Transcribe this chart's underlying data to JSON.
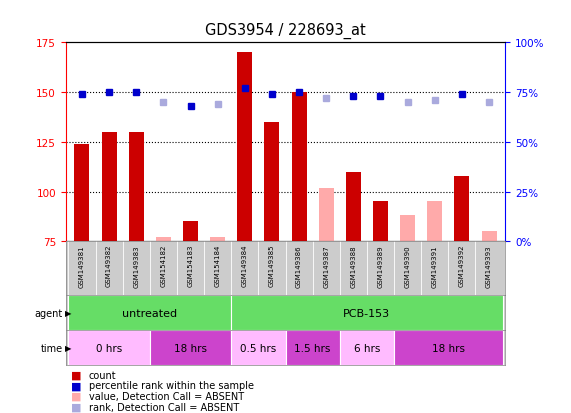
{
  "title": "GDS3954 / 228693_at",
  "samples": [
    "GSM149381",
    "GSM149382",
    "GSM149383",
    "GSM154182",
    "GSM154183",
    "GSM154184",
    "GSM149384",
    "GSM149385",
    "GSM149386",
    "GSM149387",
    "GSM149388",
    "GSM149389",
    "GSM149390",
    "GSM149391",
    "GSM149392",
    "GSM149393"
  ],
  "counts": [
    124,
    130,
    130,
    null,
    85,
    null,
    170,
    135,
    150,
    null,
    110,
    95,
    null,
    null,
    108,
    null
  ],
  "counts_absent": [
    null,
    null,
    null,
    77,
    null,
    77,
    null,
    null,
    null,
    102,
    null,
    null,
    88,
    95,
    null,
    80
  ],
  "ranks": [
    74,
    75,
    75,
    null,
    68,
    null,
    77,
    74,
    75,
    null,
    73,
    73,
    null,
    null,
    74,
    null
  ],
  "ranks_absent": [
    null,
    null,
    null,
    70,
    null,
    69,
    null,
    null,
    null,
    72,
    null,
    null,
    70,
    71,
    null,
    70
  ],
  "ylim_left": [
    75,
    175
  ],
  "ylim_right": [
    0,
    100
  ],
  "yticks_left": [
    75,
    100,
    125,
    150,
    175
  ],
  "yticks_right": [
    0,
    25,
    50,
    75,
    100
  ],
  "ytick_labels_right": [
    "0%",
    "25%",
    "50%",
    "75%",
    "100%"
  ],
  "hgrid_lines": [
    100,
    125,
    150
  ],
  "bar_color_present": "#cc0000",
  "bar_color_absent": "#ffaaaa",
  "rank_color_present": "#0000cc",
  "rank_color_absent": "#aaaadd",
  "sample_bg": "#cccccc",
  "agent_color": "#66dd66",
  "time_light": "#ffbbff",
  "time_dark": "#cc44cc",
  "legend_items": [
    {
      "color": "#cc0000",
      "label": "count"
    },
    {
      "color": "#0000cc",
      "label": "percentile rank within the sample"
    },
    {
      "color": "#ffaaaa",
      "label": "value, Detection Call = ABSENT"
    },
    {
      "color": "#aaaadd",
      "label": "rank, Detection Call = ABSENT"
    }
  ],
  "agent_groups": [
    {
      "label": "untreated",
      "xstart": -0.5,
      "xend": 5.5
    },
    {
      "label": "PCB-153",
      "xstart": 5.5,
      "xend": 15.5
    }
  ],
  "time_groups": [
    {
      "label": "0 hrs",
      "xstart": -0.5,
      "xend": 2.5,
      "light": true
    },
    {
      "label": "18 hrs",
      "xstart": 2.5,
      "xend": 5.5,
      "light": false
    },
    {
      "label": "0.5 hrs",
      "xstart": 5.5,
      "xend": 7.5,
      "light": true
    },
    {
      "label": "1.5 hrs",
      "xstart": 7.5,
      "xend": 9.5,
      "light": false
    },
    {
      "label": "6 hrs",
      "xstart": 9.5,
      "xend": 11.5,
      "light": true
    },
    {
      "label": "18 hrs",
      "xstart": 11.5,
      "xend": 15.5,
      "light": false
    }
  ]
}
